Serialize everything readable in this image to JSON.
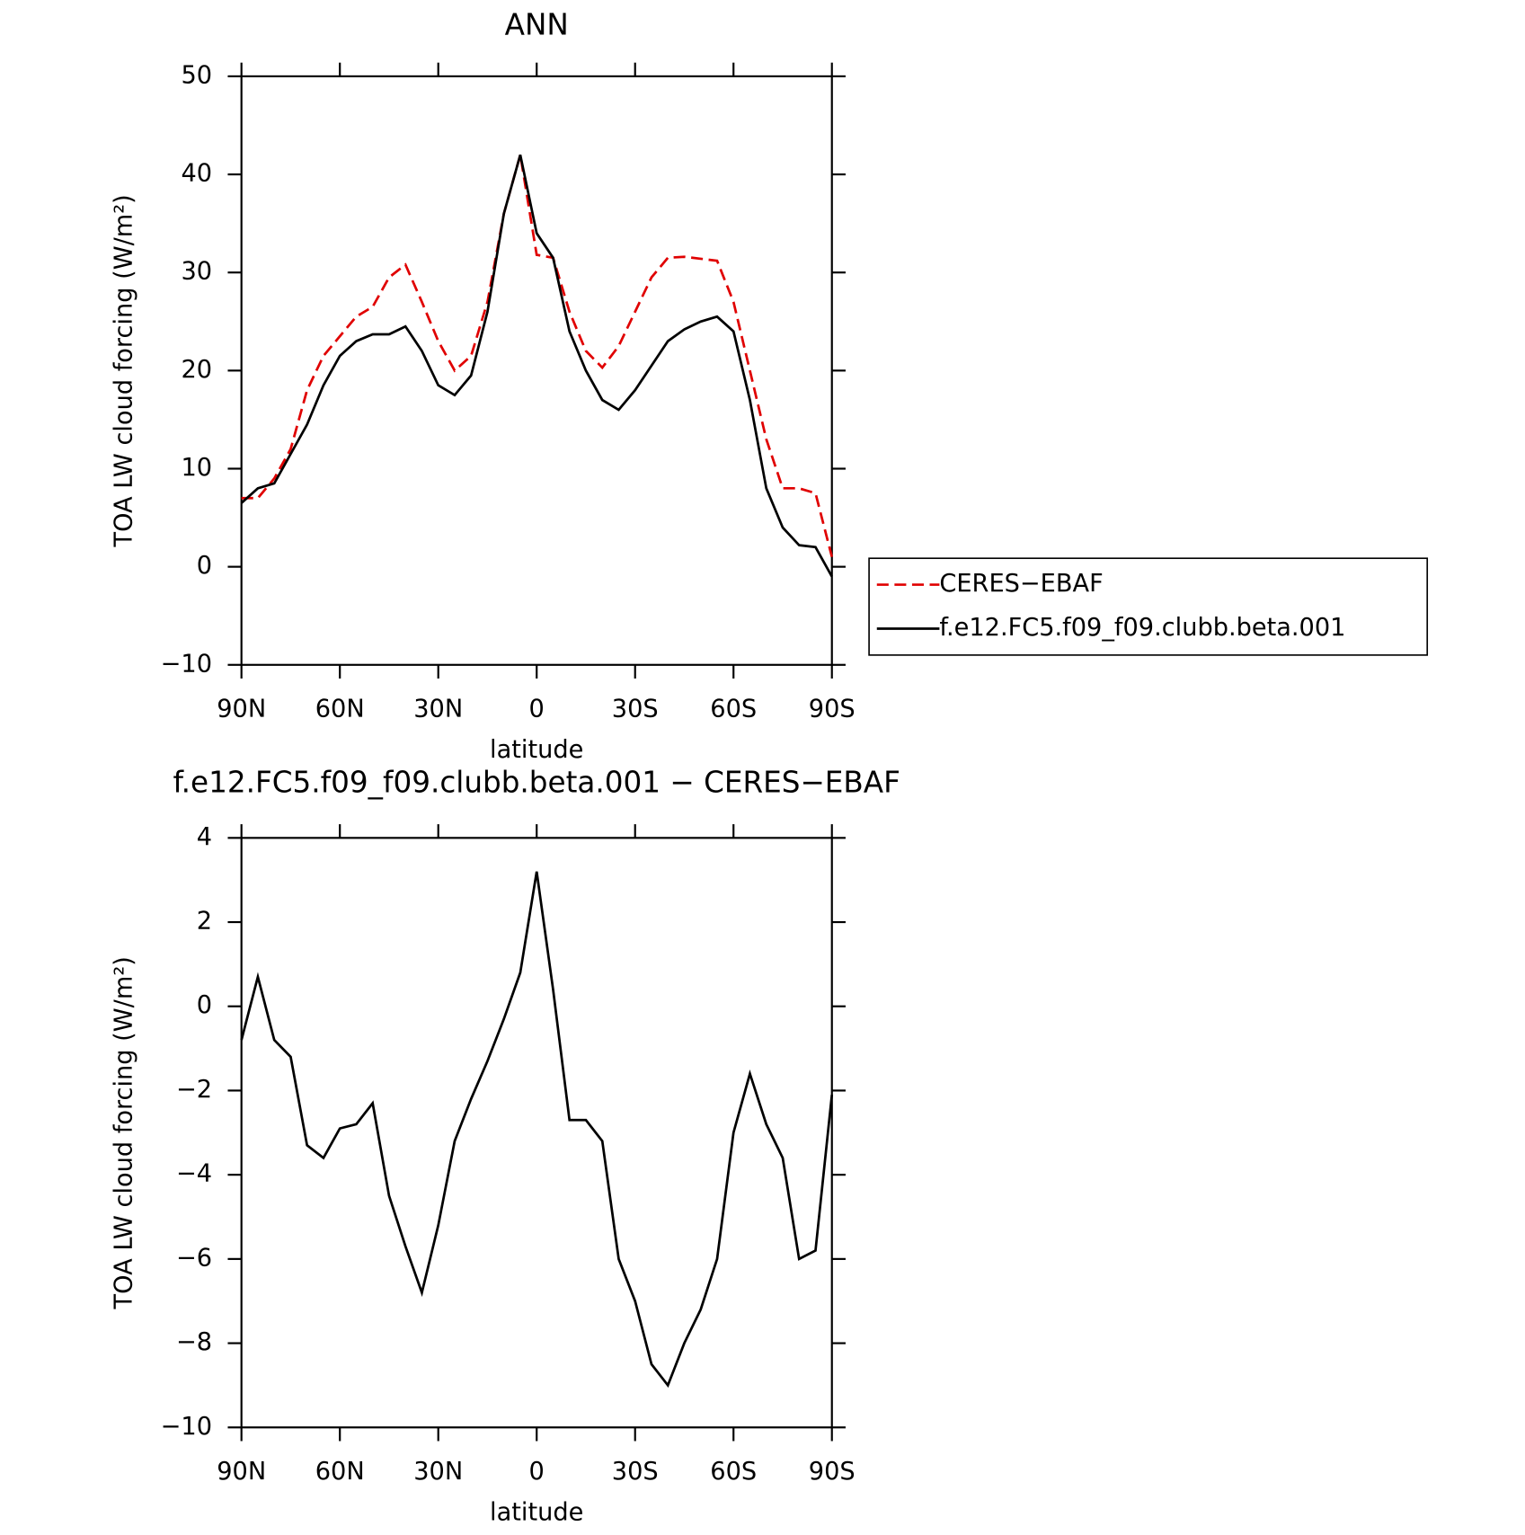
{
  "chart_data": [
    {
      "type": "line",
      "title": "ANN",
      "xlabel": "latitude",
      "ylabel": "TOA LW cloud forcing (W/m²)",
      "x": [
        90,
        85,
        80,
        75,
        70,
        65,
        60,
        55,
        50,
        45,
        40,
        35,
        30,
        25,
        20,
        15,
        10,
        5,
        0,
        -5,
        -10,
        -15,
        -20,
        -25,
        -30,
        -35,
        -40,
        -45,
        -50,
        -55,
        -60,
        -65,
        -70,
        -75,
        -80,
        -85,
        -90
      ],
      "xlim": [
        90,
        -90
      ],
      "xticks": [
        {
          "value": 90,
          "label": "90N"
        },
        {
          "value": 60,
          "label": "60N"
        },
        {
          "value": 30,
          "label": "30N"
        },
        0,
        {
          "value": -30,
          "label": "30S"
        },
        {
          "value": -60,
          "label": "60S"
        },
        {
          "value": -90,
          "label": "90S"
        }
      ],
      "ylim": [
        -10,
        50
      ],
      "yticks": [
        {
          "value": -10,
          "label": "−10"
        },
        0,
        10,
        20,
        30,
        40,
        50
      ],
      "series": [
        {
          "name": "CERES−EBAF",
          "color": "#e00000",
          "dashed": true,
          "values": [
            7,
            7,
            9,
            12,
            18,
            21.5,
            23.5,
            25.5,
            26.5,
            29.5,
            30.8,
            27,
            23,
            20,
            21.5,
            27,
            36,
            42,
            31.8,
            31.5,
            26,
            22,
            20.3,
            22.5,
            26,
            29.5,
            31.5,
            31.6,
            31.4,
            31.2,
            27,
            20,
            13,
            8,
            8,
            7.5,
            1
          ]
        },
        {
          "name": "f.e12.FC5.f09_f09.clubb.beta.001",
          "color": "#000000",
          "dashed": false,
          "values": [
            6.5,
            8,
            8.5,
            11.5,
            14.5,
            18.5,
            21.5,
            23,
            23.7,
            23.7,
            24.5,
            22,
            18.5,
            17.5,
            19.5,
            26,
            36,
            42,
            34,
            31.5,
            24,
            20,
            17,
            16,
            18,
            20.5,
            23,
            24.2,
            25,
            25.5,
            24,
            17,
            8,
            4,
            2.2,
            2,
            -1
          ]
        }
      ]
    },
    {
      "type": "line",
      "title": "f.e12.FC5.f09_f09.clubb.beta.001 − CERES−EBAF",
      "xlabel": "latitude",
      "ylabel": "TOA LW cloud forcing (W/m²)",
      "x": [
        90,
        85,
        80,
        75,
        70,
        65,
        60,
        55,
        50,
        45,
        40,
        35,
        30,
        25,
        20,
        15,
        10,
        5,
        0,
        -5,
        -10,
        -15,
        -20,
        -25,
        -30,
        -35,
        -40,
        -45,
        -50,
        -55,
        -60,
        -65,
        -70,
        -75,
        -80,
        -85,
        -90
      ],
      "xlim": [
        90,
        -90
      ],
      "xticks": [
        {
          "value": 90,
          "label": "90N"
        },
        {
          "value": 60,
          "label": "60N"
        },
        {
          "value": 30,
          "label": "30N"
        },
        0,
        {
          "value": -30,
          "label": "30S"
        },
        {
          "value": -60,
          "label": "60S"
        },
        {
          "value": -90,
          "label": "90S"
        }
      ],
      "ylim": [
        -10,
        4
      ],
      "yticks": [
        {
          "value": -10,
          "label": "−10"
        },
        {
          "value": -8,
          "label": "−8"
        },
        {
          "value": -6,
          "label": "−6"
        },
        {
          "value": -4,
          "label": "−4"
        },
        {
          "value": -2,
          "label": "−2"
        },
        0,
        2,
        4
      ],
      "series": [
        {
          "color": "#000000",
          "dashed": false,
          "values": [
            -0.8,
            0.7,
            -0.8,
            -1.2,
            -3.3,
            -3.6,
            -2.9,
            -2.8,
            -2.3,
            -4.5,
            -5.7,
            -6.8,
            -5.2,
            -3.2,
            -2.2,
            -1.3,
            -0.3,
            0.8,
            3.2,
            0.4,
            -2.7,
            -2.7,
            -3.2,
            -6,
            -7,
            -8.5,
            -9,
            -8,
            -7.2,
            -6,
            -3,
            -1.6,
            -2.8,
            -3.6,
            -6,
            -5.8,
            -2.1
          ]
        }
      ]
    }
  ]
}
